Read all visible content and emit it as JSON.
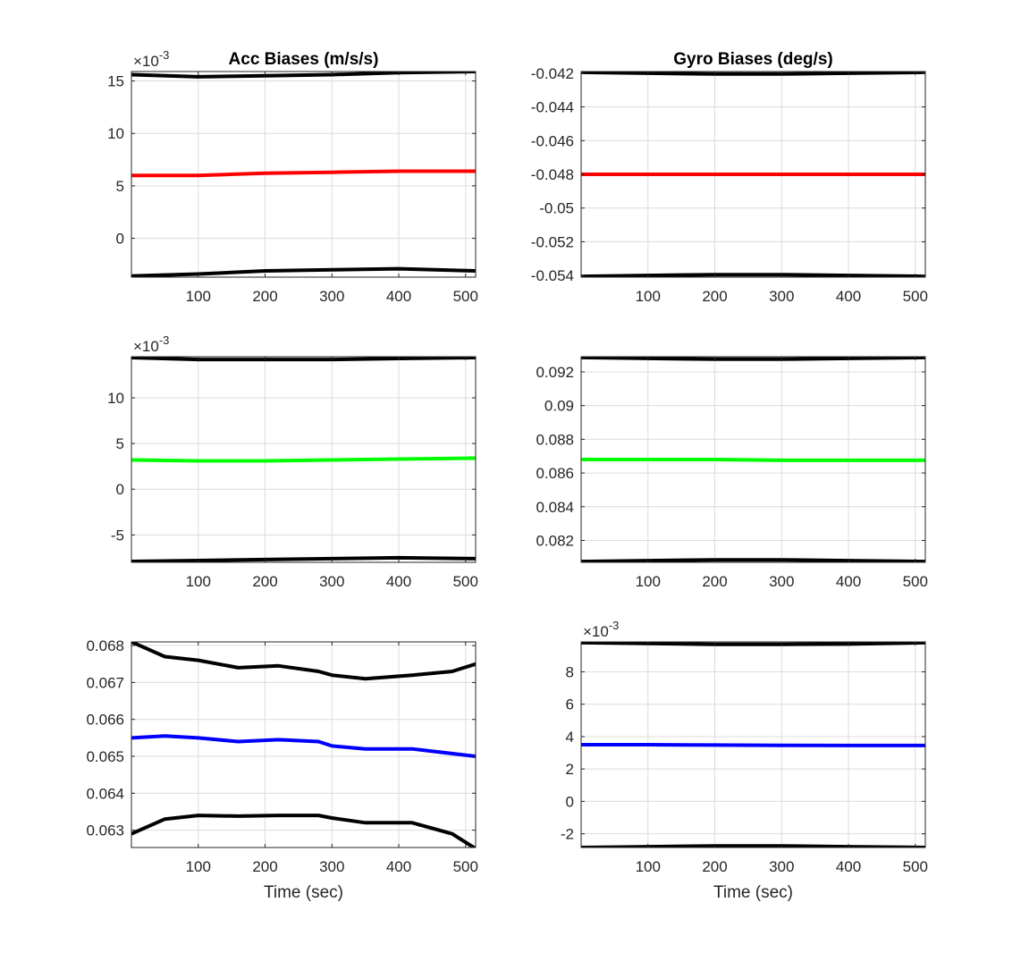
{
  "colors": {
    "grid": "#dcdcdc",
    "frame": "#262626",
    "bound": "#000000",
    "red": "#ff0000",
    "green": "#00ff00",
    "blue": "#0000ff"
  },
  "chart_data": [
    {
      "type": "line",
      "title": "Acc Biases (m/s/s)",
      "xlabel": "",
      "ylabel": "",
      "exponent_label": "×10",
      "exponent_power": "-3",
      "xlim": [
        0,
        515
      ],
      "ylim": [
        -3.7,
        15.9
      ],
      "xticks": [
        100,
        200,
        300,
        400,
        500
      ],
      "yticks": [
        0,
        5,
        10,
        15
      ],
      "grid": true,
      "series": [
        {
          "color": "red",
          "x": [
            0,
            100,
            200,
            300,
            400,
            515
          ],
          "y": [
            6.0,
            6.0,
            6.2,
            6.3,
            6.4,
            6.4
          ]
        },
        {
          "color": "bound",
          "x": [
            0,
            100,
            200,
            300,
            400,
            515
          ],
          "y": [
            15.6,
            15.4,
            15.5,
            15.6,
            15.8,
            15.9
          ]
        },
        {
          "color": "bound",
          "x": [
            0,
            100,
            200,
            300,
            400,
            515
          ],
          "y": [
            -3.6,
            -3.4,
            -3.1,
            -3.0,
            -2.9,
            -3.1
          ]
        }
      ]
    },
    {
      "type": "line",
      "title": "Gyro Biases (deg/s)",
      "xlabel": "",
      "ylabel": "",
      "xlim": [
        0,
        515
      ],
      "ylim": [
        -0.0541,
        -0.0419
      ],
      "xticks": [
        100,
        200,
        300,
        400,
        500
      ],
      "yticks": [
        -0.054,
        -0.052,
        -0.05,
        -0.048,
        -0.046,
        -0.044,
        -0.042
      ],
      "ytick_labels": [
        "-0.054",
        "-0.052",
        "-0.05",
        "-0.048",
        "-0.046",
        "-0.044",
        "-0.042"
      ],
      "grid": true,
      "series": [
        {
          "color": "red",
          "x": [
            0,
            100,
            200,
            300,
            400,
            515
          ],
          "y": [
            -0.048,
            -0.048,
            -0.048,
            -0.048,
            -0.048,
            -0.048
          ]
        },
        {
          "color": "bound",
          "x": [
            0,
            100,
            200,
            300,
            400,
            515
          ],
          "y": [
            -0.04195,
            -0.042,
            -0.04205,
            -0.04205,
            -0.042,
            -0.04195
          ]
        },
        {
          "color": "bound",
          "x": [
            0,
            100,
            200,
            300,
            400,
            515
          ],
          "y": [
            -0.05405,
            -0.054,
            -0.05395,
            -0.05395,
            -0.054,
            -0.05405
          ]
        }
      ]
    },
    {
      "type": "line",
      "title": "",
      "xlabel": "",
      "ylabel": "",
      "exponent_label": "×10",
      "exponent_power": "-3",
      "xlim": [
        0,
        515
      ],
      "ylim": [
        -8.0,
        14.5
      ],
      "xticks": [
        100,
        200,
        300,
        400,
        500
      ],
      "yticks": [
        -5,
        0,
        5,
        10
      ],
      "grid": true,
      "series": [
        {
          "color": "green",
          "x": [
            0,
            100,
            200,
            300,
            400,
            515
          ],
          "y": [
            3.2,
            3.1,
            3.1,
            3.2,
            3.3,
            3.4
          ]
        },
        {
          "color": "bound",
          "x": [
            0,
            100,
            200,
            300,
            400,
            515
          ],
          "y": [
            14.4,
            14.2,
            14.2,
            14.2,
            14.3,
            14.4
          ]
        },
        {
          "color": "bound",
          "x": [
            0,
            100,
            200,
            300,
            400,
            515
          ],
          "y": [
            -7.9,
            -7.8,
            -7.7,
            -7.6,
            -7.5,
            -7.6
          ]
        }
      ]
    },
    {
      "type": "line",
      "title": "",
      "xlabel": "",
      "ylabel": "",
      "xlim": [
        0,
        515
      ],
      "ylim": [
        0.0807,
        0.0929
      ],
      "xticks": [
        100,
        200,
        300,
        400,
        500
      ],
      "yticks": [
        0.082,
        0.084,
        0.086,
        0.088,
        0.09,
        0.092
      ],
      "ytick_labels": [
        "0.082",
        "0.084",
        "0.086",
        "0.088",
        "0.09",
        "0.092"
      ],
      "grid": true,
      "series": [
        {
          "color": "green",
          "x": [
            0,
            100,
            200,
            300,
            400,
            515
          ],
          "y": [
            0.0868,
            0.0868,
            0.0868,
            0.08675,
            0.08675,
            0.08675
          ]
        },
        {
          "color": "bound",
          "x": [
            0,
            100,
            200,
            300,
            400,
            515
          ],
          "y": [
            0.09285,
            0.0928,
            0.09275,
            0.09275,
            0.0928,
            0.09285
          ]
        },
        {
          "color": "bound",
          "x": [
            0,
            100,
            200,
            300,
            400,
            515
          ],
          "y": [
            0.08075,
            0.0808,
            0.08085,
            0.08085,
            0.0808,
            0.08075
          ]
        }
      ]
    },
    {
      "type": "line",
      "title": "",
      "xlabel": "Time (sec)",
      "ylabel": "",
      "xlim": [
        0,
        515
      ],
      "ylim": [
        0.06253,
        0.0681
      ],
      "xticks": [
        100,
        200,
        300,
        400,
        500
      ],
      "yticks": [
        0.063,
        0.064,
        0.065,
        0.066,
        0.067,
        0.068
      ],
      "ytick_labels": [
        "0.063",
        "0.064",
        "0.065",
        "0.066",
        "0.067",
        "0.068"
      ],
      "grid": true,
      "series": [
        {
          "color": "blue",
          "x": [
            0,
            50,
            100,
            160,
            220,
            280,
            300,
            350,
            420,
            515
          ],
          "y": [
            0.0655,
            0.06555,
            0.0655,
            0.0654,
            0.06545,
            0.0654,
            0.06528,
            0.0652,
            0.0652,
            0.065
          ]
        },
        {
          "color": "bound",
          "x": [
            0,
            50,
            100,
            160,
            220,
            280,
            300,
            350,
            420,
            480,
            515
          ],
          "y": [
            0.0681,
            0.0677,
            0.0676,
            0.0674,
            0.06745,
            0.0673,
            0.0672,
            0.0671,
            0.0672,
            0.0673,
            0.0675
          ]
        },
        {
          "color": "bound",
          "x": [
            0,
            50,
            100,
            160,
            220,
            280,
            300,
            350,
            420,
            480,
            515
          ],
          "y": [
            0.0629,
            0.0633,
            0.0634,
            0.06338,
            0.0634,
            0.0634,
            0.06333,
            0.0632,
            0.0632,
            0.0629,
            0.0625
          ]
        }
      ]
    },
    {
      "type": "line",
      "title": "",
      "xlabel": "Time (sec)",
      "ylabel": "",
      "exponent_label": "×10",
      "exponent_power": "-3",
      "xlim": [
        0,
        515
      ],
      "ylim": [
        -2.85,
        9.85
      ],
      "xticks": [
        100,
        200,
        300,
        400,
        500
      ],
      "yticks": [
        -2,
        0,
        2,
        4,
        6,
        8
      ],
      "grid": true,
      "series": [
        {
          "color": "blue",
          "x": [
            0,
            100,
            200,
            300,
            400,
            515
          ],
          "y": [
            3.5,
            3.5,
            3.48,
            3.46,
            3.45,
            3.45
          ]
        },
        {
          "color": "bound",
          "x": [
            0,
            100,
            200,
            300,
            400,
            515
          ],
          "y": [
            9.8,
            9.75,
            9.7,
            9.7,
            9.72,
            9.8
          ]
        },
        {
          "color": "bound",
          "x": [
            0,
            100,
            200,
            300,
            400,
            515
          ],
          "y": [
            -2.85,
            -2.8,
            -2.75,
            -2.75,
            -2.8,
            -2.85
          ]
        }
      ]
    }
  ]
}
